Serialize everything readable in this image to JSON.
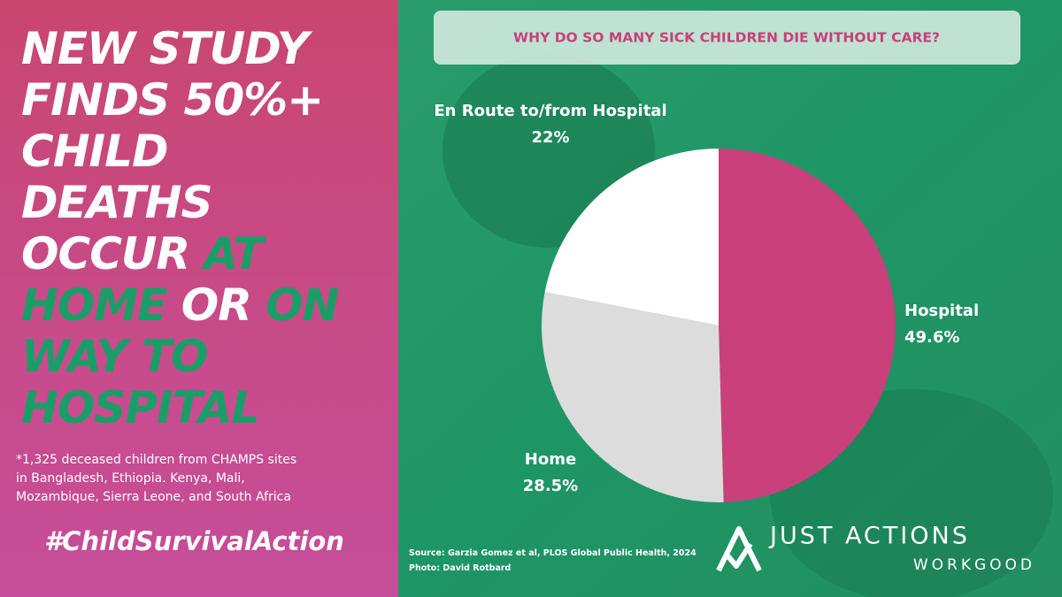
{
  "headline": [
    [
      {
        "text": "NEW STUDY",
        "highlight": false
      }
    ],
    [
      {
        "text": "FINDS 50%+",
        "highlight": false
      }
    ],
    [
      {
        "text": "CHILD",
        "highlight": false
      }
    ],
    [
      {
        "text": "DEATHS",
        "highlight": false
      }
    ],
    [
      {
        "text": "OCCUR",
        "highlight": false
      },
      {
        "text": "AT",
        "highlight": true
      }
    ],
    [
      {
        "text": "HOME",
        "highlight": true
      },
      {
        "text": "OR",
        "highlight": false
      },
      {
        "text": "ON",
        "highlight": true
      }
    ],
    [
      {
        "text": "WAY TO",
        "highlight": true
      }
    ],
    [
      {
        "text": "HOSPITAL",
        "highlight": true
      }
    ]
  ],
  "footnote": [
    "*1,325 deceased children from CHAMPS sites",
    "in Bangladesh, Ethiopia. Kenya, Mali,",
    "Mozambique, Sierra Leone, and South Africa"
  ],
  "hashtag": "#ChildSurvivalAction",
  "source": [
    "Source: Garzia Gomez et al,  PLOS Global Public Health, 2024",
    "Photo: David Rotbard"
  ],
  "logo": {
    "line1": "JUST ACTIONS",
    "line2": "WORKGOOD"
  },
  "chart_data": {
    "type": "pie",
    "title": "WHY DO SO MANY SICK CHILDREN  DIE  WITHOUT CARE?",
    "categories": [
      "Hospital",
      "Home",
      "En Route to/from Hospital"
    ],
    "values": [
      49.6,
      28.5,
      22
    ],
    "value_labels": [
      "49.6%",
      "28.5%",
      "22%"
    ],
    "colors": [
      "#c9407a",
      "#dcdcdc",
      "#ffffff"
    ]
  }
}
